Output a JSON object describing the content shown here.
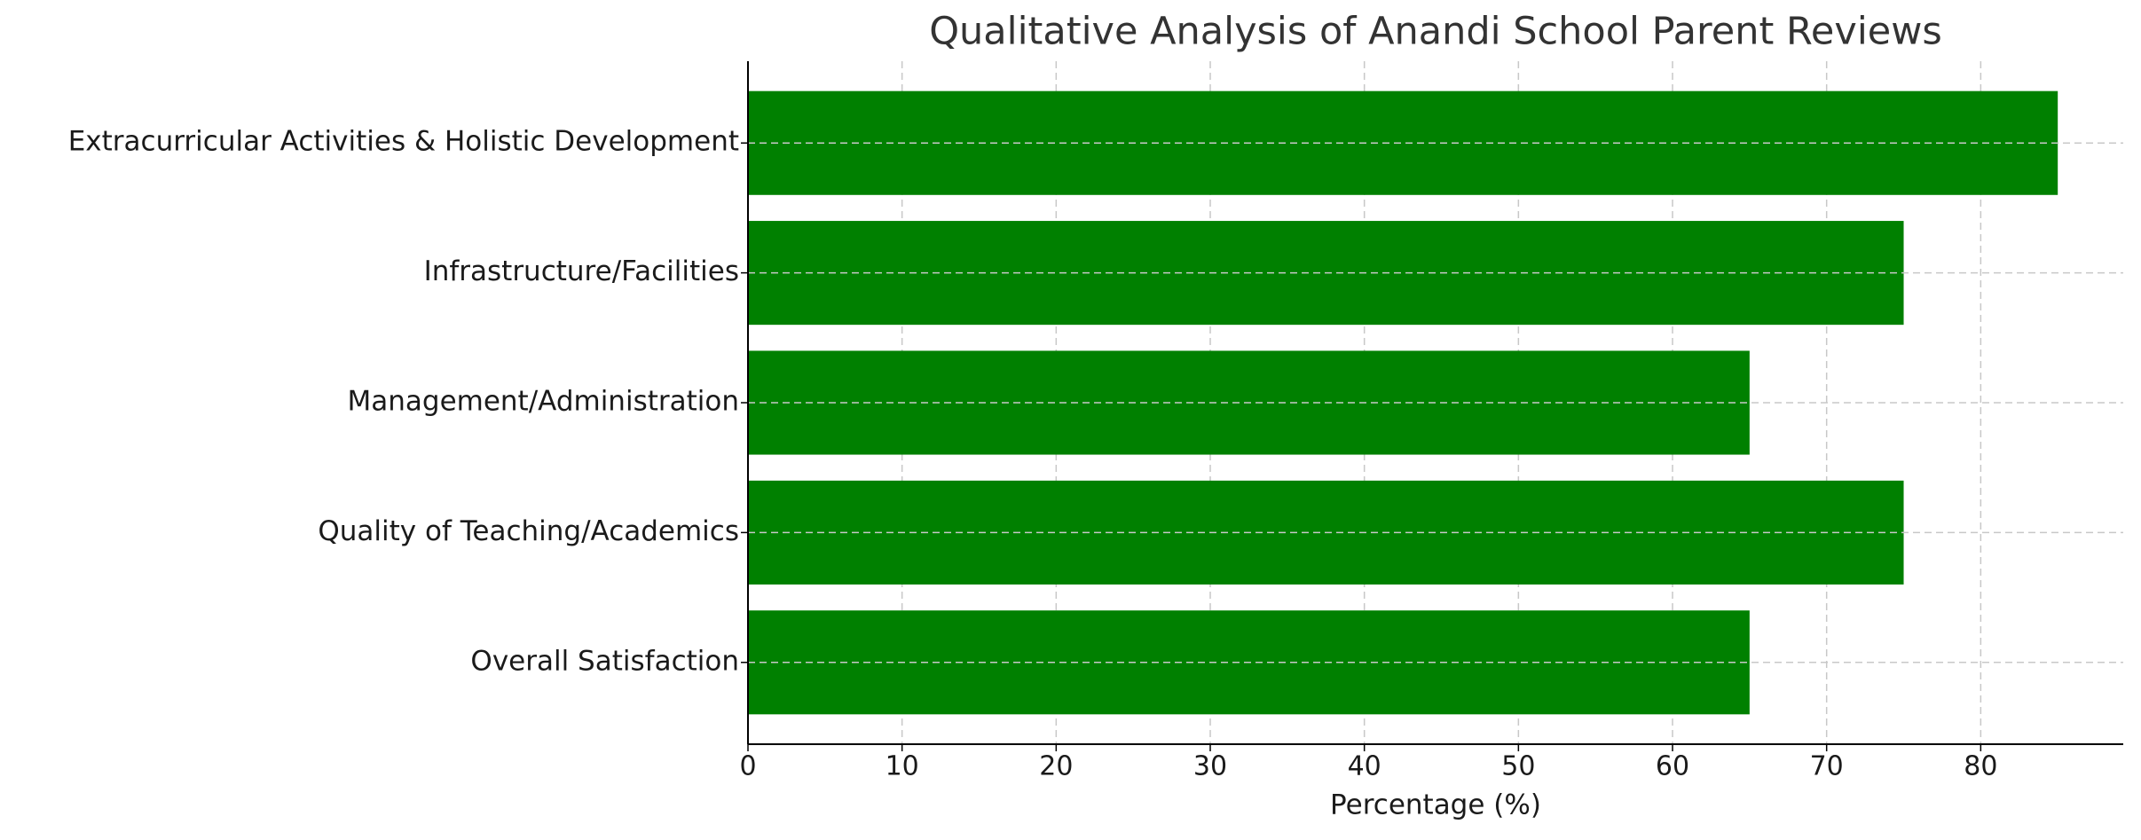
{
  "chart_data": {
    "type": "barh",
    "title": "Qualitative Analysis of Anandi School Parent Reviews",
    "x_label": "Percentage (%)",
    "categories": [
      "Overall Satisfaction",
      "Quality of Teaching/Academics",
      "Management/Administration",
      "Infrastructure/Facilities",
      "Extracurricular Activities & Holistic Development"
    ],
    "values": [
      65,
      75,
      65,
      75,
      85
    ],
    "color": "#008000",
    "xlim": [
      0,
      89.25
    ],
    "xticks": [
      0,
      10,
      20,
      30,
      40,
      50,
      60,
      70,
      80
    ],
    "grid": true
  }
}
